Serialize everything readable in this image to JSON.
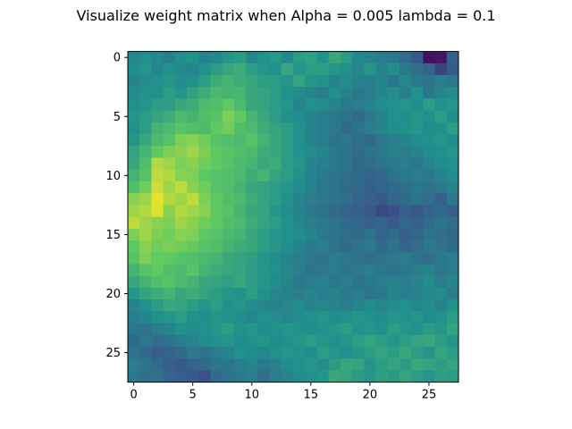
{
  "chart_data": {
    "type": "heatmap",
    "title": "Visualize weight matrix when Alpha = 0.005 lambda =  0.1",
    "xlabel": "",
    "ylabel": "",
    "rows": 28,
    "cols": 28,
    "colormap": "viridis",
    "grid": false,
    "legend": "none",
    "xlim": [
      -0.5,
      27.5
    ],
    "ylim": [
      27.5,
      -0.5
    ],
    "x_ticks": [
      0,
      5,
      10,
      15,
      20,
      25
    ],
    "y_ticks": [
      0,
      5,
      10,
      15,
      20,
      25
    ],
    "x_tick_labels": [
      "0",
      "5",
      "10",
      "15",
      "20",
      "25"
    ],
    "y_tick_labels": [
      "0",
      "5",
      "10",
      "15",
      "20",
      "25"
    ],
    "value_range": [
      0,
      1
    ],
    "values": [
      [
        0.46,
        0.5,
        0.47,
        0.42,
        0.48,
        0.51,
        0.44,
        0.47,
        0.52,
        0.55,
        0.46,
        0.5,
        0.53,
        0.47,
        0.55,
        0.57,
        0.5,
        0.6,
        0.55,
        0.47,
        0.45,
        0.42,
        0.4,
        0.35,
        0.28,
        0.05,
        0.07,
        0.3
      ],
      [
        0.49,
        0.52,
        0.45,
        0.5,
        0.47,
        0.45,
        0.5,
        0.55,
        0.6,
        0.62,
        0.55,
        0.52,
        0.5,
        0.6,
        0.52,
        0.55,
        0.55,
        0.52,
        0.5,
        0.45,
        0.52,
        0.44,
        0.48,
        0.4,
        0.36,
        0.32,
        0.2,
        0.28
      ],
      [
        0.45,
        0.48,
        0.5,
        0.52,
        0.48,
        0.5,
        0.55,
        0.62,
        0.65,
        0.62,
        0.6,
        0.55,
        0.55,
        0.52,
        0.58,
        0.52,
        0.5,
        0.45,
        0.48,
        0.44,
        0.42,
        0.45,
        0.4,
        0.46,
        0.4,
        0.38,
        0.42,
        0.4
      ],
      [
        0.48,
        0.5,
        0.5,
        0.55,
        0.52,
        0.57,
        0.62,
        0.68,
        0.65,
        0.66,
        0.6,
        0.58,
        0.55,
        0.5,
        0.48,
        0.45,
        0.42,
        0.5,
        0.44,
        0.4,
        0.42,
        0.45,
        0.48,
        0.42,
        0.5,
        0.4,
        0.45,
        0.48
      ],
      [
        0.5,
        0.52,
        0.55,
        0.55,
        0.6,
        0.62,
        0.68,
        0.7,
        0.75,
        0.68,
        0.6,
        0.58,
        0.55,
        0.52,
        0.45,
        0.5,
        0.48,
        0.45,
        0.4,
        0.42,
        0.45,
        0.48,
        0.5,
        0.52,
        0.48,
        0.55,
        0.5,
        0.52
      ],
      [
        0.52,
        0.55,
        0.58,
        0.62,
        0.68,
        0.65,
        0.7,
        0.72,
        0.8,
        0.75,
        0.65,
        0.6,
        0.55,
        0.5,
        0.48,
        0.45,
        0.42,
        0.4,
        0.38,
        0.35,
        0.4,
        0.45,
        0.5,
        0.48,
        0.52,
        0.5,
        0.55,
        0.48
      ],
      [
        0.5,
        0.55,
        0.65,
        0.68,
        0.72,
        0.7,
        0.68,
        0.75,
        0.78,
        0.7,
        0.68,
        0.62,
        0.58,
        0.55,
        0.5,
        0.45,
        0.42,
        0.4,
        0.35,
        0.38,
        0.42,
        0.45,
        0.48,
        0.5,
        0.52,
        0.48,
        0.5,
        0.55
      ],
      [
        0.52,
        0.6,
        0.68,
        0.72,
        0.8,
        0.82,
        0.78,
        0.72,
        0.7,
        0.68,
        0.72,
        0.65,
        0.6,
        0.55,
        0.5,
        0.45,
        0.42,
        0.38,
        0.4,
        0.36,
        0.34,
        0.4,
        0.42,
        0.45,
        0.48,
        0.5,
        0.52,
        0.48
      ],
      [
        0.58,
        0.65,
        0.75,
        0.8,
        0.82,
        0.85,
        0.8,
        0.75,
        0.72,
        0.7,
        0.68,
        0.62,
        0.6,
        0.55,
        0.5,
        0.48,
        0.45,
        0.4,
        0.38,
        0.35,
        0.38,
        0.4,
        0.44,
        0.42,
        0.45,
        0.48,
        0.5,
        0.52
      ],
      [
        0.6,
        0.7,
        0.88,
        0.85,
        0.8,
        0.82,
        0.78,
        0.75,
        0.72,
        0.68,
        0.65,
        0.6,
        0.62,
        0.55,
        0.52,
        0.45,
        0.42,
        0.4,
        0.38,
        0.34,
        0.36,
        0.38,
        0.4,
        0.42,
        0.4,
        0.45,
        0.48,
        0.5
      ],
      [
        0.65,
        0.72,
        0.9,
        0.88,
        0.82,
        0.8,
        0.75,
        0.72,
        0.7,
        0.68,
        0.62,
        0.65,
        0.58,
        0.55,
        0.5,
        0.45,
        0.4,
        0.38,
        0.36,
        0.35,
        0.32,
        0.34,
        0.38,
        0.4,
        0.42,
        0.4,
        0.45,
        0.48
      ],
      [
        0.7,
        0.78,
        0.92,
        0.85,
        0.9,
        0.82,
        0.78,
        0.72,
        0.7,
        0.65,
        0.6,
        0.58,
        0.55,
        0.52,
        0.48,
        0.44,
        0.4,
        0.38,
        0.35,
        0.34,
        0.3,
        0.32,
        0.35,
        0.36,
        0.4,
        0.38,
        0.4,
        0.45
      ],
      [
        0.82,
        0.85,
        0.96,
        0.88,
        0.85,
        0.9,
        0.8,
        0.75,
        0.7,
        0.68,
        0.62,
        0.58,
        0.55,
        0.5,
        0.45,
        0.42,
        0.4,
        0.38,
        0.36,
        0.32,
        0.3,
        0.28,
        0.32,
        0.35,
        0.38,
        0.36,
        0.3,
        0.4
      ],
      [
        0.85,
        0.88,
        0.95,
        0.82,
        0.88,
        0.85,
        0.82,
        0.75,
        0.72,
        0.65,
        0.6,
        0.58,
        0.52,
        0.48,
        0.44,
        0.4,
        0.38,
        0.35,
        0.32,
        0.3,
        0.28,
        0.22,
        0.24,
        0.3,
        0.28,
        0.32,
        0.35,
        0.3
      ],
      [
        0.9,
        0.85,
        0.82,
        0.8,
        0.85,
        0.82,
        0.78,
        0.75,
        0.7,
        0.68,
        0.62,
        0.58,
        0.55,
        0.5,
        0.46,
        0.42,
        0.4,
        0.38,
        0.35,
        0.34,
        0.3,
        0.32,
        0.28,
        0.34,
        0.3,
        0.35,
        0.38,
        0.36
      ],
      [
        0.8,
        0.85,
        0.8,
        0.78,
        0.82,
        0.8,
        0.75,
        0.72,
        0.68,
        0.65,
        0.6,
        0.55,
        0.52,
        0.5,
        0.48,
        0.45,
        0.4,
        0.38,
        0.36,
        0.35,
        0.38,
        0.32,
        0.35,
        0.3,
        0.34,
        0.38,
        0.36,
        0.34
      ],
      [
        0.75,
        0.82,
        0.78,
        0.8,
        0.78,
        0.76,
        0.72,
        0.7,
        0.65,
        0.62,
        0.6,
        0.55,
        0.52,
        0.48,
        0.45,
        0.4,
        0.42,
        0.38,
        0.35,
        0.38,
        0.4,
        0.35,
        0.38,
        0.32,
        0.36,
        0.4,
        0.38,
        0.35
      ],
      [
        0.72,
        0.8,
        0.76,
        0.75,
        0.72,
        0.7,
        0.68,
        0.65,
        0.6,
        0.58,
        0.56,
        0.52,
        0.48,
        0.45,
        0.42,
        0.4,
        0.38,
        0.42,
        0.4,
        0.38,
        0.36,
        0.38,
        0.4,
        0.42,
        0.38,
        0.36,
        0.4,
        0.42
      ],
      [
        0.65,
        0.72,
        0.75,
        0.7,
        0.68,
        0.72,
        0.65,
        0.62,
        0.6,
        0.58,
        0.55,
        0.52,
        0.5,
        0.46,
        0.42,
        0.38,
        0.4,
        0.42,
        0.38,
        0.4,
        0.42,
        0.4,
        0.38,
        0.4,
        0.42,
        0.45,
        0.4,
        0.42
      ],
      [
        0.6,
        0.65,
        0.7,
        0.72,
        0.68,
        0.65,
        0.6,
        0.58,
        0.56,
        0.6,
        0.55,
        0.52,
        0.48,
        0.45,
        0.4,
        0.42,
        0.44,
        0.4,
        0.42,
        0.38,
        0.4,
        0.42,
        0.44,
        0.42,
        0.45,
        0.48,
        0.42,
        0.45
      ],
      [
        0.52,
        0.58,
        0.62,
        0.65,
        0.6,
        0.62,
        0.58,
        0.55,
        0.52,
        0.5,
        0.55,
        0.5,
        0.46,
        0.44,
        0.42,
        0.45,
        0.42,
        0.44,
        0.4,
        0.42,
        0.38,
        0.4,
        0.45,
        0.42,
        0.44,
        0.46,
        0.48,
        0.42
      ],
      [
        0.45,
        0.5,
        0.55,
        0.6,
        0.58,
        0.55,
        0.52,
        0.55,
        0.5,
        0.52,
        0.48,
        0.46,
        0.44,
        0.46,
        0.48,
        0.45,
        0.46,
        0.44,
        0.42,
        0.45,
        0.48,
        0.46,
        0.48,
        0.5,
        0.46,
        0.48,
        0.44,
        0.5
      ],
      [
        0.42,
        0.45,
        0.5,
        0.52,
        0.55,
        0.5,
        0.48,
        0.52,
        0.5,
        0.48,
        0.46,
        0.5,
        0.48,
        0.46,
        0.48,
        0.5,
        0.52,
        0.48,
        0.5,
        0.52,
        0.5,
        0.48,
        0.52,
        0.5,
        0.52,
        0.48,
        0.5,
        0.55
      ],
      [
        0.4,
        0.38,
        0.42,
        0.45,
        0.5,
        0.48,
        0.5,
        0.52,
        0.55,
        0.5,
        0.52,
        0.48,
        0.5,
        0.52,
        0.5,
        0.48,
        0.5,
        0.52,
        0.55,
        0.5,
        0.52,
        0.5,
        0.55,
        0.52,
        0.5,
        0.55,
        0.52,
        0.58
      ],
      [
        0.35,
        0.4,
        0.36,
        0.38,
        0.42,
        0.45,
        0.48,
        0.5,
        0.52,
        0.48,
        0.5,
        0.52,
        0.48,
        0.5,
        0.52,
        0.55,
        0.52,
        0.5,
        0.52,
        0.55,
        0.58,
        0.55,
        0.52,
        0.55,
        0.58,
        0.6,
        0.55,
        0.52
      ],
      [
        0.38,
        0.35,
        0.3,
        0.32,
        0.35,
        0.4,
        0.38,
        0.42,
        0.45,
        0.5,
        0.48,
        0.46,
        0.5,
        0.52,
        0.5,
        0.48,
        0.55,
        0.52,
        0.5,
        0.52,
        0.55,
        0.58,
        0.55,
        0.6,
        0.55,
        0.52,
        0.58,
        0.55
      ],
      [
        0.42,
        0.38,
        0.35,
        0.3,
        0.28,
        0.32,
        0.35,
        0.38,
        0.4,
        0.42,
        0.45,
        0.4,
        0.44,
        0.48,
        0.5,
        0.52,
        0.48,
        0.55,
        0.6,
        0.58,
        0.52,
        0.55,
        0.58,
        0.55,
        0.6,
        0.58,
        0.55,
        0.58
      ],
      [
        0.4,
        0.36,
        0.38,
        0.32,
        0.3,
        0.28,
        0.24,
        0.35,
        0.38,
        0.4,
        0.42,
        0.36,
        0.42,
        0.45,
        0.48,
        0.5,
        0.52,
        0.6,
        0.58,
        0.55,
        0.52,
        0.56,
        0.54,
        0.58,
        0.55,
        0.52,
        0.56,
        0.55
      ]
    ]
  }
}
